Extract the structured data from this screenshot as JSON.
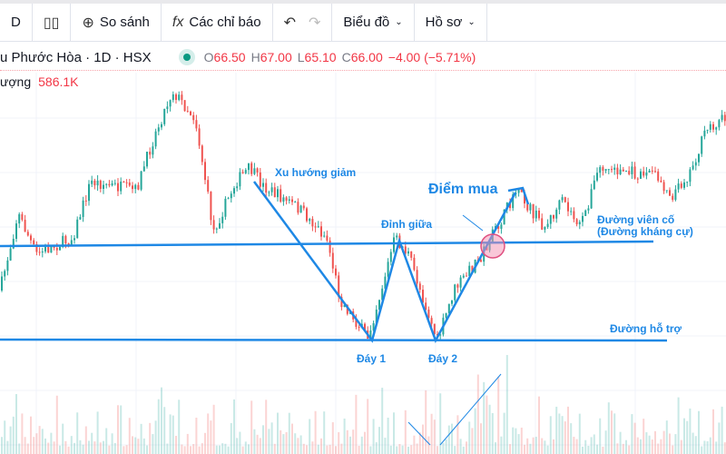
{
  "toolbar": {
    "interval": "D",
    "compare": "So sánh",
    "indicators": "Các chỉ báo",
    "chart": "Biểu đồ",
    "profile": "Hồ sơ"
  },
  "legend": {
    "symbol": "u Phước Hòa",
    "interval": "1D",
    "exchange": "HSX",
    "o_label": "O",
    "open": "66.50",
    "h_label": "H",
    "high": "67.00",
    "l_label": "L",
    "low": "65.10",
    "c_label": "C",
    "close": "66.00",
    "change": "−4.00 (−5.71%)"
  },
  "volume": {
    "label": "ượng",
    "value": "586.1K"
  },
  "annotations": {
    "downtrend": "Xu hướng giảm",
    "middle_peak": "Đỉnh giữa",
    "buy_point": "Điểm mua",
    "neckline": "Đường viên cố",
    "resistance": "(Đường kháng cự)",
    "support": "Đường hỗ trợ",
    "bottom1": "Đáy 1",
    "bottom2": "Đáy 2"
  },
  "colors": {
    "up": "#26a69a",
    "down": "#ef5350",
    "annotation": "#1e88e5",
    "buy_circle": "#f48fb1"
  }
}
